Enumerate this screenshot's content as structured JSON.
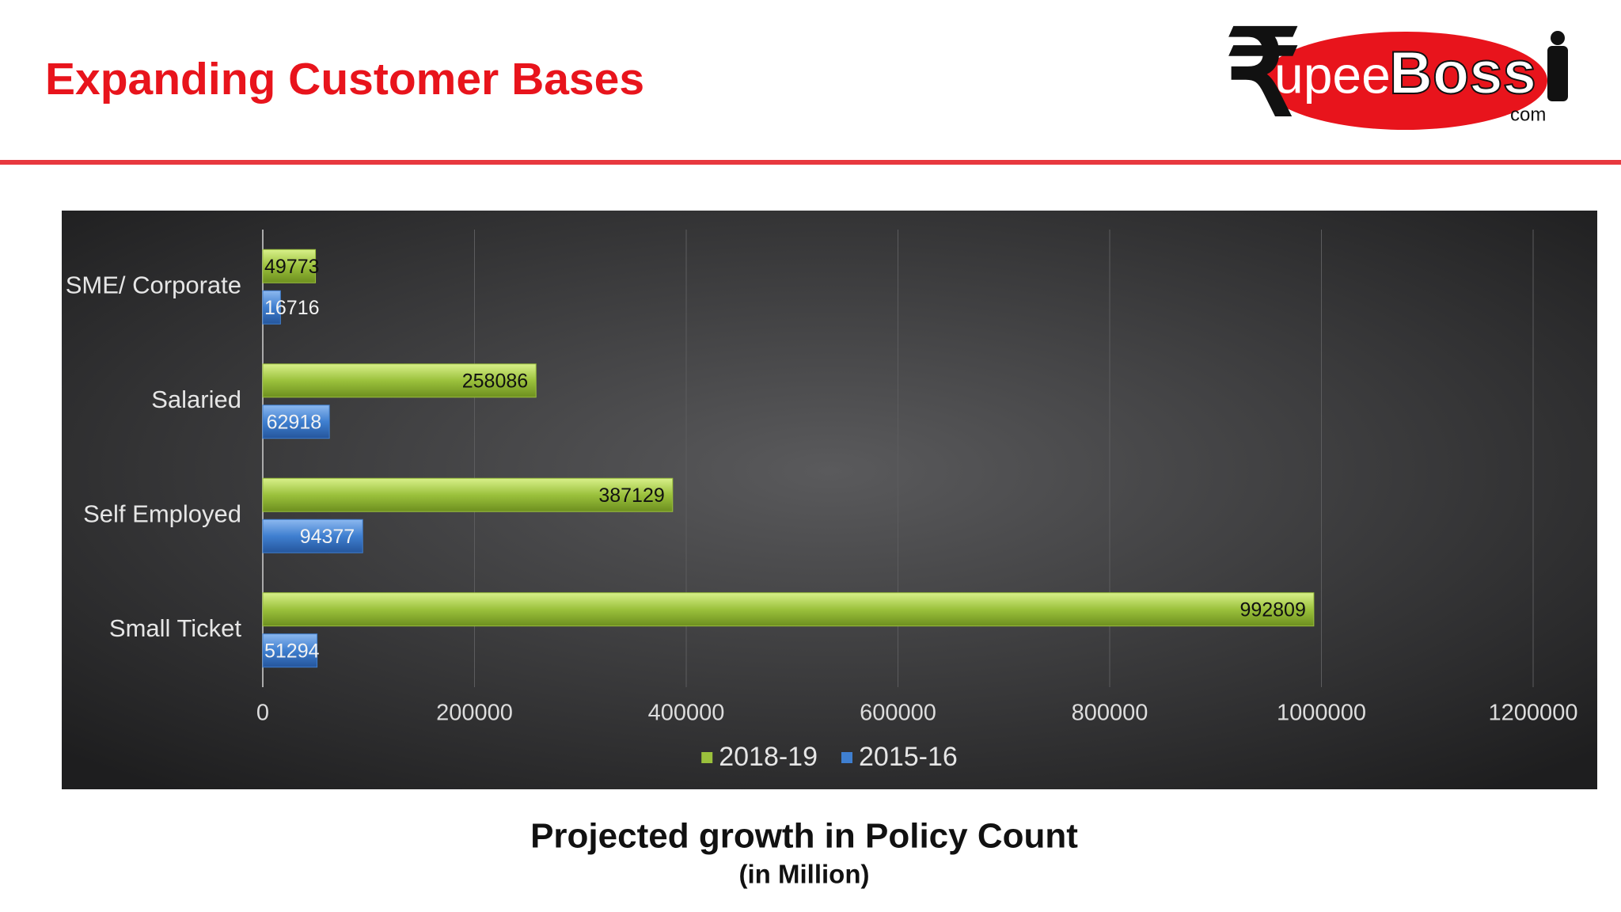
{
  "header": {
    "title": "Expanding Customer Bases"
  },
  "logo": {
    "symbol": "₹",
    "name": "upee",
    "emphasis": "Boss",
    "suffix": "com"
  },
  "chart_data": {
    "type": "bar",
    "orientation": "horizontal",
    "categories": [
      "SME/ Corporate",
      "Salaried",
      "Self Employed",
      "Small Ticket"
    ],
    "series": [
      {
        "name": "2018-19",
        "color": "#9bc13c",
        "values": [
          49773,
          258086,
          387129,
          992809
        ]
      },
      {
        "name": "2015-16",
        "color": "#3f7fd0",
        "values": [
          16716,
          62918,
          94377,
          51294
        ]
      }
    ],
    "xlim": [
      0,
      1200000
    ],
    "xticks": [
      0,
      200000,
      400000,
      600000,
      800000,
      1000000,
      1200000
    ],
    "grid": true,
    "legend": "bottom"
  },
  "caption": {
    "title": "Projected growth in Policy Count",
    "subtitle": "(in Million)"
  }
}
